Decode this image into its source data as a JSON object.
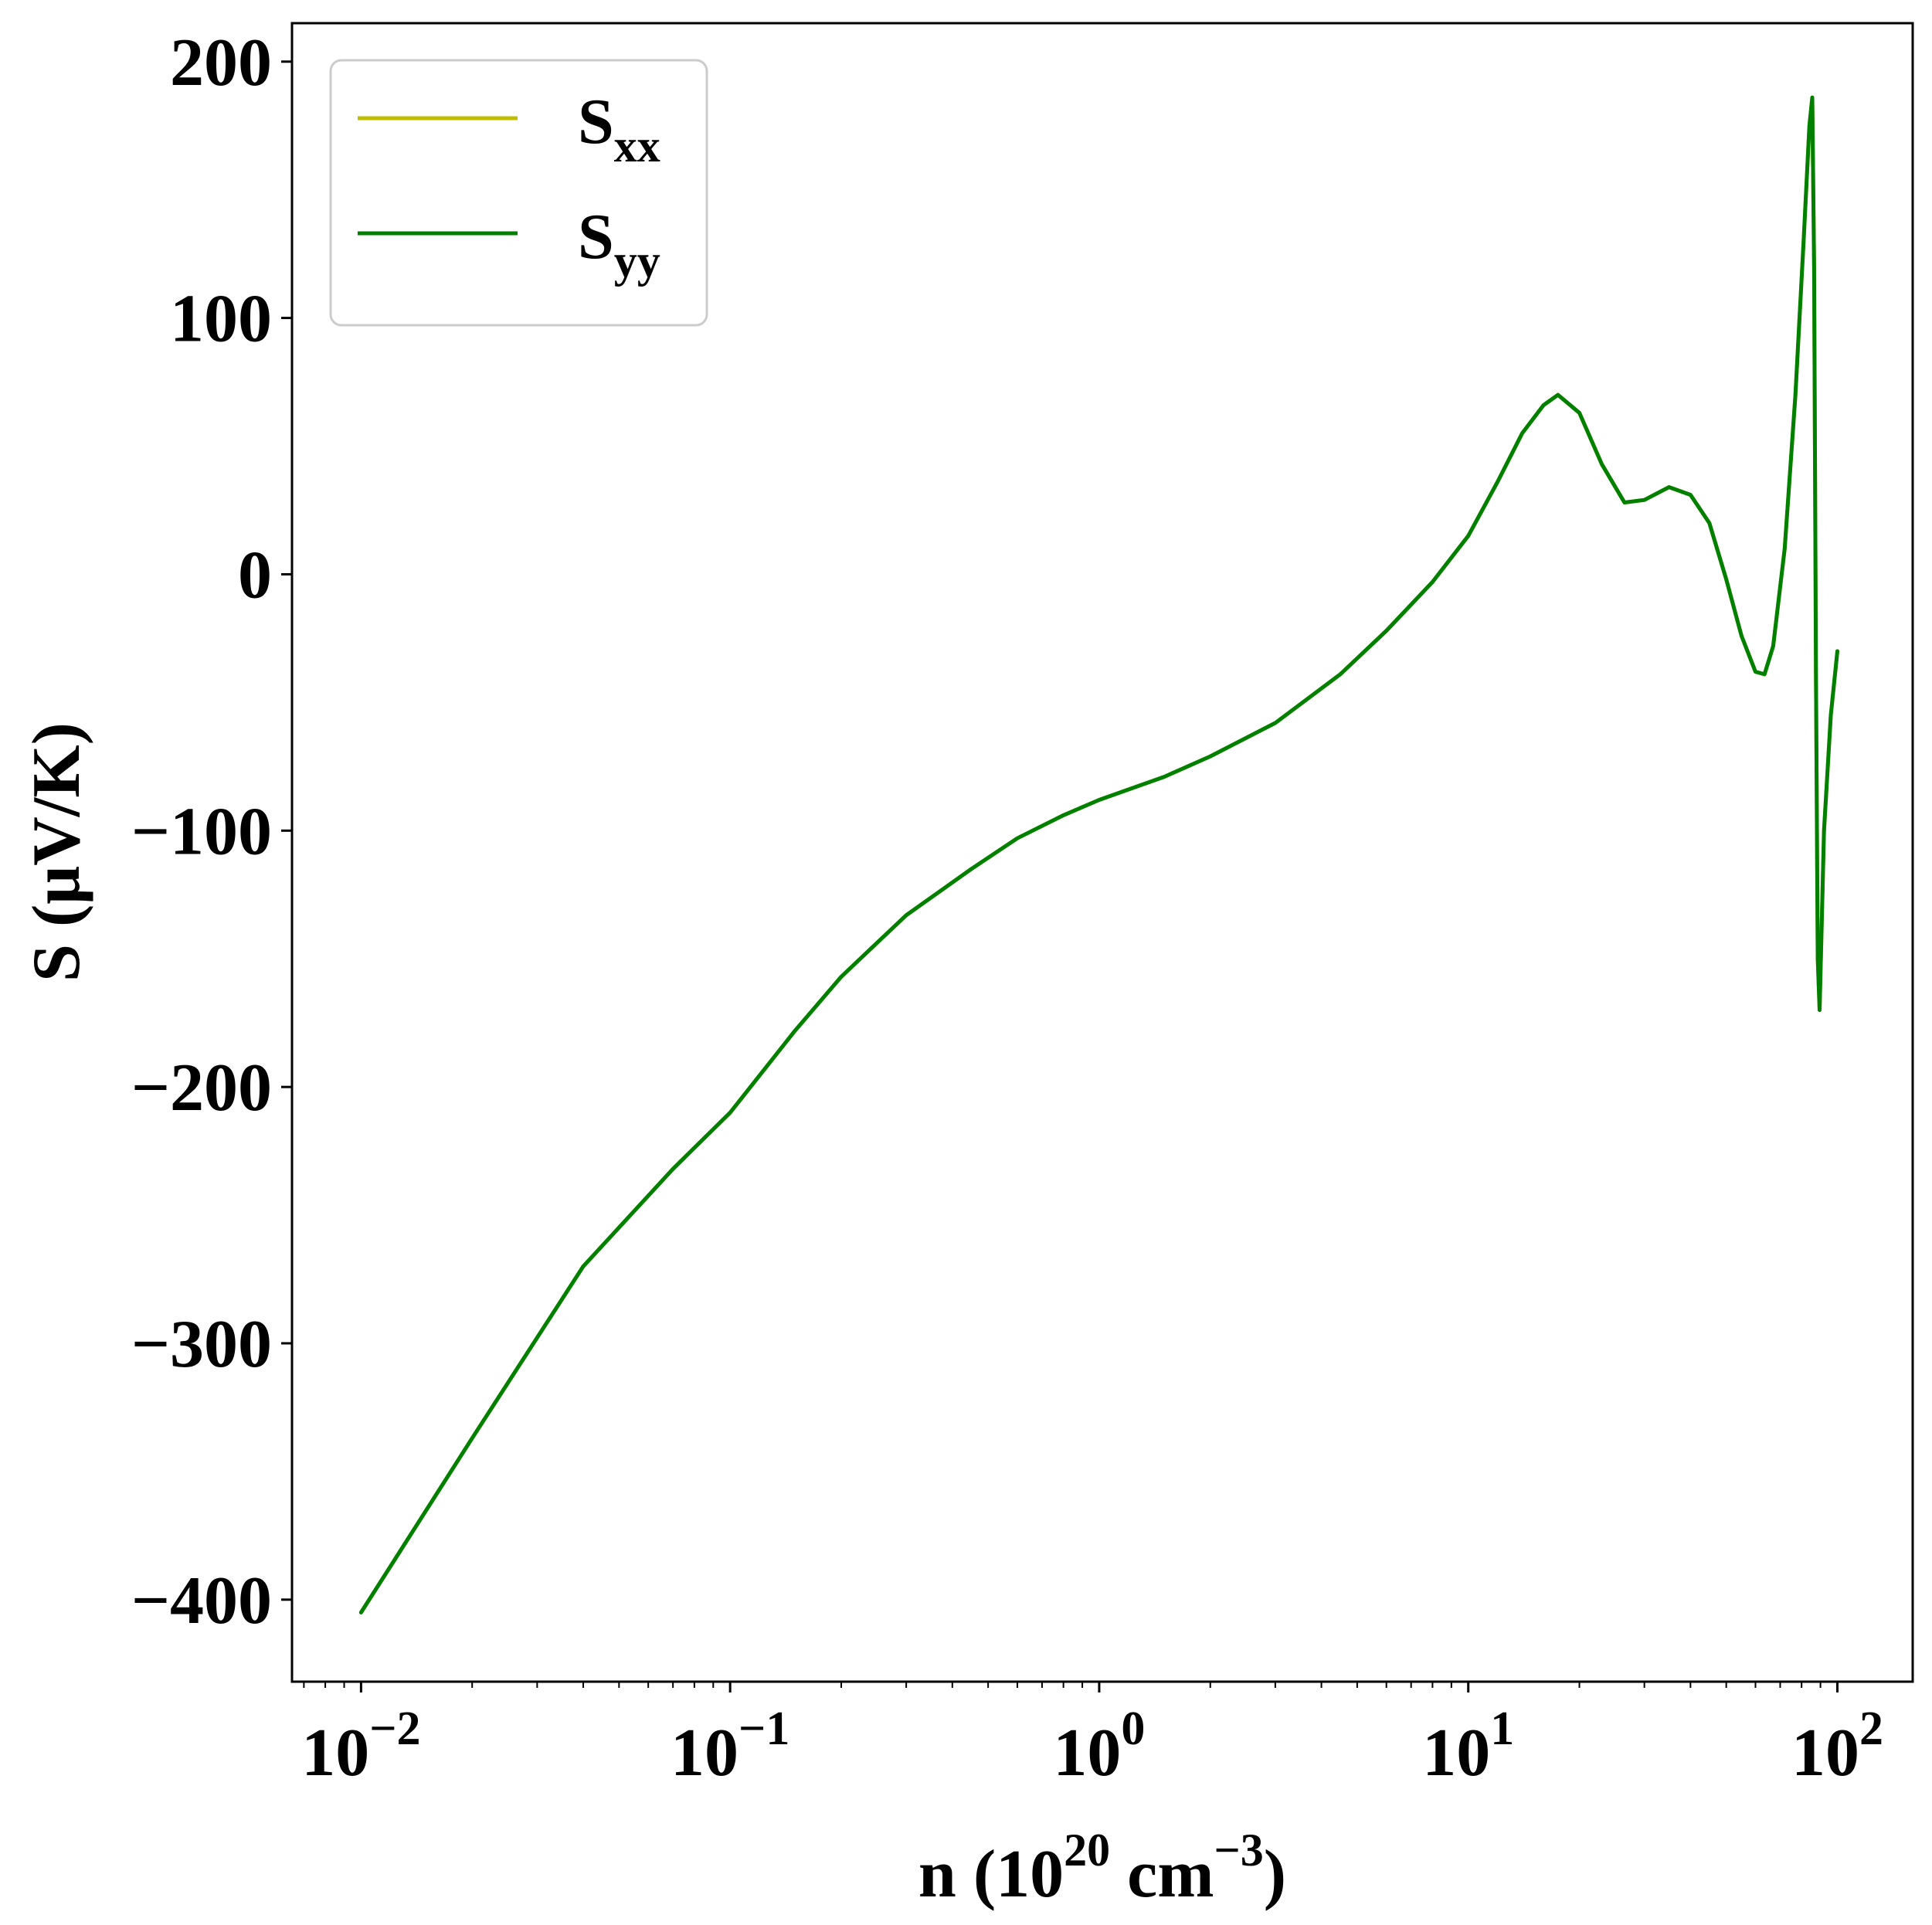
{
  "chart_data": {
    "type": "line",
    "xlabel": {
      "prefix": "n (10",
      "exp1": "20",
      "mid": " cm",
      "exp2": "−3",
      "suffix": ")"
    },
    "ylabel": "S (μV/K)",
    "xscale": "log",
    "xlim": [
      0.0065,
      160
    ],
    "ylim": [
      -432,
      215
    ],
    "x_ticks": [
      {
        "value": 0.01,
        "base": "10",
        "exp": "−2"
      },
      {
        "value": 0.1,
        "base": "10",
        "exp": "−1"
      },
      {
        "value": 1,
        "base": "10",
        "exp": "0"
      },
      {
        "value": 10,
        "base": "10",
        "exp": "1"
      },
      {
        "value": 100,
        "base": "10",
        "exp": "2"
      }
    ],
    "y_ticks": [
      {
        "value": 200,
        "label": "200"
      },
      {
        "value": 100,
        "label": "100"
      },
      {
        "value": 0,
        "label": "0"
      },
      {
        "value": -100,
        "label": "−100"
      },
      {
        "value": -200,
        "label": "−200"
      },
      {
        "value": -300,
        "label": "−300"
      },
      {
        "value": -400,
        "label": "−400"
      }
    ],
    "legend": {
      "position": "upper-left",
      "entries": [
        {
          "base": "S",
          "sub": "xx",
          "color": "#bfbf00"
        },
        {
          "base": "S",
          "sub": "yy",
          "color": "#008000"
        }
      ]
    },
    "grid": false,
    "series": [
      {
        "name": "Sxx",
        "color": "#bfbf00",
        "x": [
          0.01,
          0.02,
          0.04,
          0.07,
          0.1,
          0.15,
          0.2,
          0.3,
          0.45,
          0.6,
          0.8,
          1.0,
          1.5,
          2.0,
          3.0,
          4.5,
          6.0,
          8.0,
          10,
          12,
          14,
          16,
          17.5,
          20,
          23,
          26.5,
          30,
          35,
          40,
          45,
          50,
          55,
          60,
          63.5,
          67,
          72,
          77,
          81,
          84,
          85.5,
          86.5,
          87.5,
          88.5,
          89.5,
          92,
          96,
          100
        ],
        "y": [
          -405,
          -337,
          -270,
          -232,
          -210,
          -178,
          -157,
          -133,
          -115,
          -103,
          -94,
          -88,
          -79,
          -71,
          -58,
          -39,
          -22,
          -3,
          15,
          36,
          55,
          66,
          70,
          63,
          43,
          28,
          29,
          34,
          31,
          20,
          -2,
          -24,
          -38,
          -39,
          -28,
          10,
          70,
          130,
          175,
          186,
          120,
          -40,
          -150,
          -170,
          -100,
          -55,
          -30
        ]
      },
      {
        "name": "Syy",
        "color": "#008000",
        "x": [
          0.01,
          0.02,
          0.04,
          0.07,
          0.1,
          0.15,
          0.2,
          0.3,
          0.45,
          0.6,
          0.8,
          1.0,
          1.5,
          2.0,
          3.0,
          4.5,
          6.0,
          8.0,
          10,
          12,
          14,
          16,
          17.5,
          20,
          23,
          26.5,
          30,
          35,
          40,
          45,
          50,
          55,
          60,
          63.5,
          67,
          72,
          77,
          81,
          84,
          85.5,
          86.5,
          87.5,
          88.5,
          89.5,
          92,
          96,
          100
        ],
        "y": [
          -405,
          -337,
          -270,
          -232,
          -210,
          -178,
          -157,
          -133,
          -115,
          -103,
          -94,
          -88,
          -79,
          -71,
          -58,
          -39,
          -22,
          -3,
          15,
          36,
          55,
          66,
          70,
          63,
          43,
          28,
          29,
          34,
          31,
          20,
          -2,
          -24,
          -38,
          -39,
          -28,
          10,
          70,
          130,
          175,
          186,
          120,
          -40,
          -150,
          -170,
          -100,
          -55,
          -30
        ]
      }
    ]
  }
}
